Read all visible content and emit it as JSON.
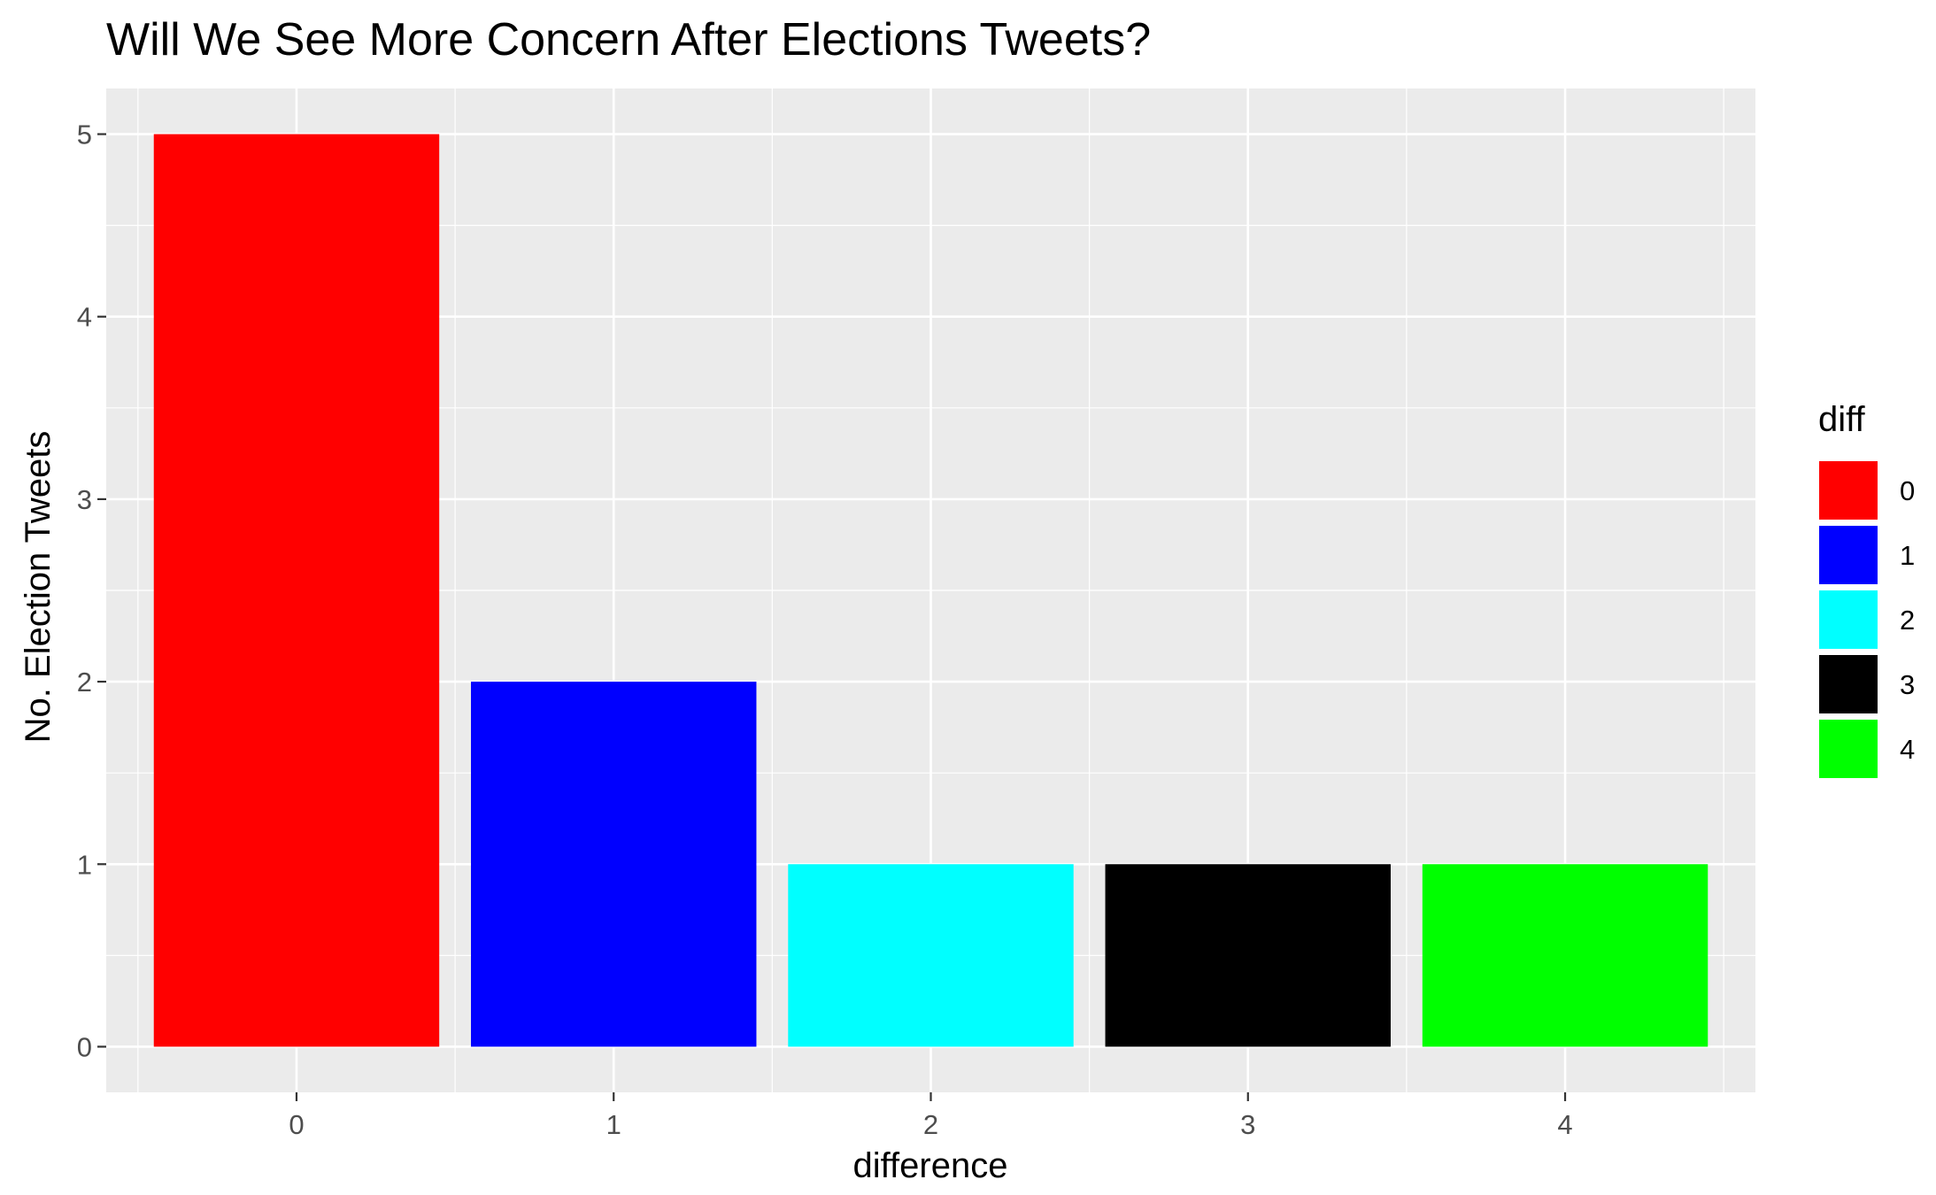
{
  "chart_data": {
    "type": "bar",
    "title": "Will We See More Concern After Elections Tweets?",
    "xlabel": "difference",
    "ylabel": "No. Election Tweets",
    "categories": [
      "0",
      "1",
      "2",
      "3",
      "4"
    ],
    "values": [
      5,
      2,
      1,
      1,
      1
    ],
    "colors": [
      "#ff0000",
      "#0000ff",
      "#00ffff",
      "#000000",
      "#00ff00"
    ],
    "ylim": [
      -0.25,
      5.25
    ],
    "y_ticks": [
      "0",
      "1",
      "2",
      "3",
      "4",
      "5"
    ],
    "grid": true,
    "panel_background": "#ebebeb",
    "legend": {
      "title": "diff",
      "position": "right",
      "entries": [
        "0",
        "1",
        "2",
        "3",
        "4"
      ]
    }
  }
}
